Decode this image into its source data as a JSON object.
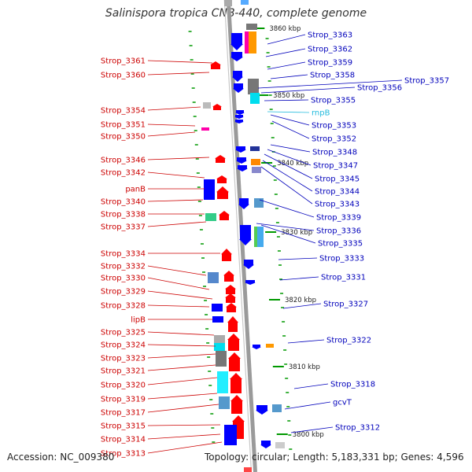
{
  "title": "Salinispora tropica CNB-440, complete genome",
  "footer": {
    "accession": "Accession: NC_009380",
    "topology": "Topology: circular; Length: 5,183,331 bp; Genes: 4,596"
  },
  "colors": {
    "backbone": "#9a9a9a",
    "forward_gene": "#ff0000",
    "reverse_gene": "#0000ff",
    "left_label": "#cc0000",
    "right_label": "#0000bb",
    "rna_label": "#22bbdd",
    "tick": "#009900"
  },
  "ticks": [
    "3860 kbp",
    "3850 kbp",
    "3840 kbp",
    "3830 kbp",
    "3820 kbp",
    "3810 kbp",
    "3800 kbp"
  ],
  "left_labels": [
    "Strop_3361",
    "Strop_3360",
    "Strop_3354",
    "Strop_3351",
    "Strop_3350",
    "Strop_3346",
    "Strop_3342",
    "panB",
    "Strop_3340",
    "Strop_3338",
    "Strop_3337",
    "Strop_3334",
    "Strop_3332",
    "Strop_3330",
    "Strop_3329",
    "Strop_3328",
    "lipB",
    "Strop_3325",
    "Strop_3324",
    "Strop_3323",
    "Strop_3321",
    "Strop_3320",
    "Strop_3319",
    "Strop_3317",
    "Strop_3315",
    "Strop_3314",
    "Strop_3313"
  ],
  "right_labels": [
    "Strop_3363",
    "Strop_3362",
    "Strop_3359",
    "Strop_3358",
    "Strop_3357",
    "Strop_3356",
    "Strop_3355",
    "rnpB",
    "Strop_3353",
    "Strop_3352",
    "Strop_3348",
    "Strop_3347",
    "Strop_3345",
    "Strop_3344",
    "Strop_3343",
    "Strop_3339",
    "Strop_3336",
    "Strop_3335",
    "Strop_3333",
    "Strop_3331",
    "Strop_3327",
    "Strop_3322",
    "Strop_3318",
    "gcvT",
    "Strop_3312"
  ]
}
